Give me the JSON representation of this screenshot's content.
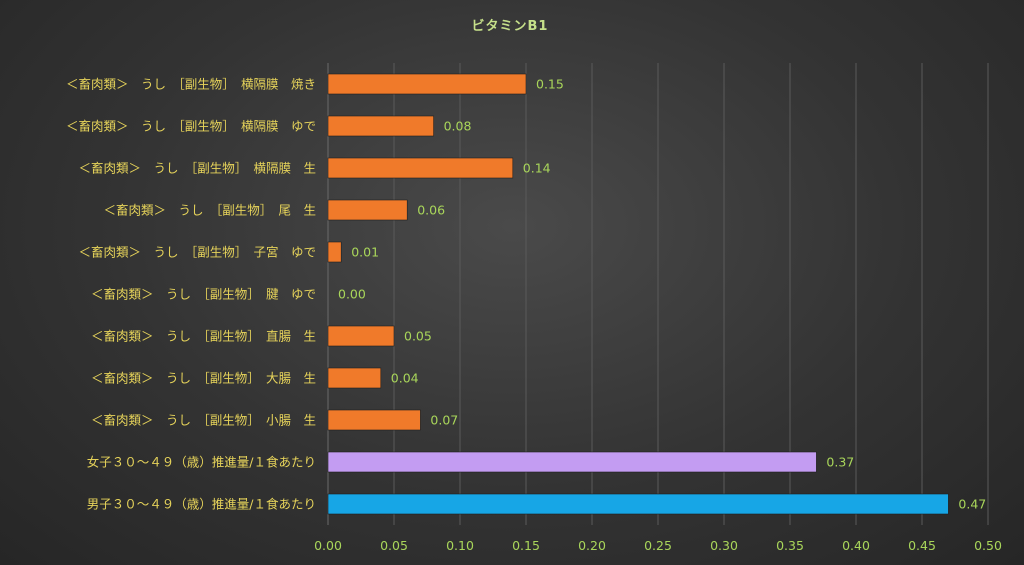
{
  "chart_data": {
    "type": "bar",
    "orientation": "horizontal",
    "title": "ビタミンB1",
    "xlim": [
      0,
      0.5
    ],
    "x_ticks": [
      "0.00",
      "0.05",
      "0.10",
      "0.15",
      "0.20",
      "0.25",
      "0.30",
      "0.35",
      "0.40",
      "0.45",
      "0.50"
    ],
    "grid": true,
    "categories": [
      "＜畜肉類＞　うし　［副生物］　横隔膜　焼き",
      "＜畜肉類＞　うし　［副生物］　横隔膜　ゆで",
      "＜畜肉類＞　うし　［副生物］　横隔膜　生",
      "＜畜肉類＞　うし　［副生物］　尾　生",
      "＜畜肉類＞　うし　［副生物］　子宮　ゆで",
      "＜畜肉類＞　うし　［副生物］　腱　ゆで",
      "＜畜肉類＞　うし　［副生物］　直腸　生",
      "＜畜肉類＞　うし　［副生物］　大腸　生",
      "＜畜肉類＞　うし　［副生物］　小腸　生",
      "女子３０～４９（歳）推進量/１食あたり",
      "男子３０～４９（歳）推進量/１食あたり"
    ],
    "values": [
      0.15,
      0.08,
      0.14,
      0.06,
      0.01,
      0.0,
      0.05,
      0.04,
      0.07,
      0.37,
      0.47
    ],
    "data_labels": [
      "0.15",
      "0.08",
      "0.14",
      "0.06",
      "0.01",
      "0.00",
      "0.05",
      "0.04",
      "0.07",
      "0.37",
      "0.47"
    ],
    "bar_colors": [
      "#f07a2a",
      "#f07a2a",
      "#f07a2a",
      "#f07a2a",
      "#f07a2a",
      "#f07a2a",
      "#f07a2a",
      "#f07a2a",
      "#f07a2a",
      "#c39cf2",
      "#17a6e6"
    ]
  }
}
